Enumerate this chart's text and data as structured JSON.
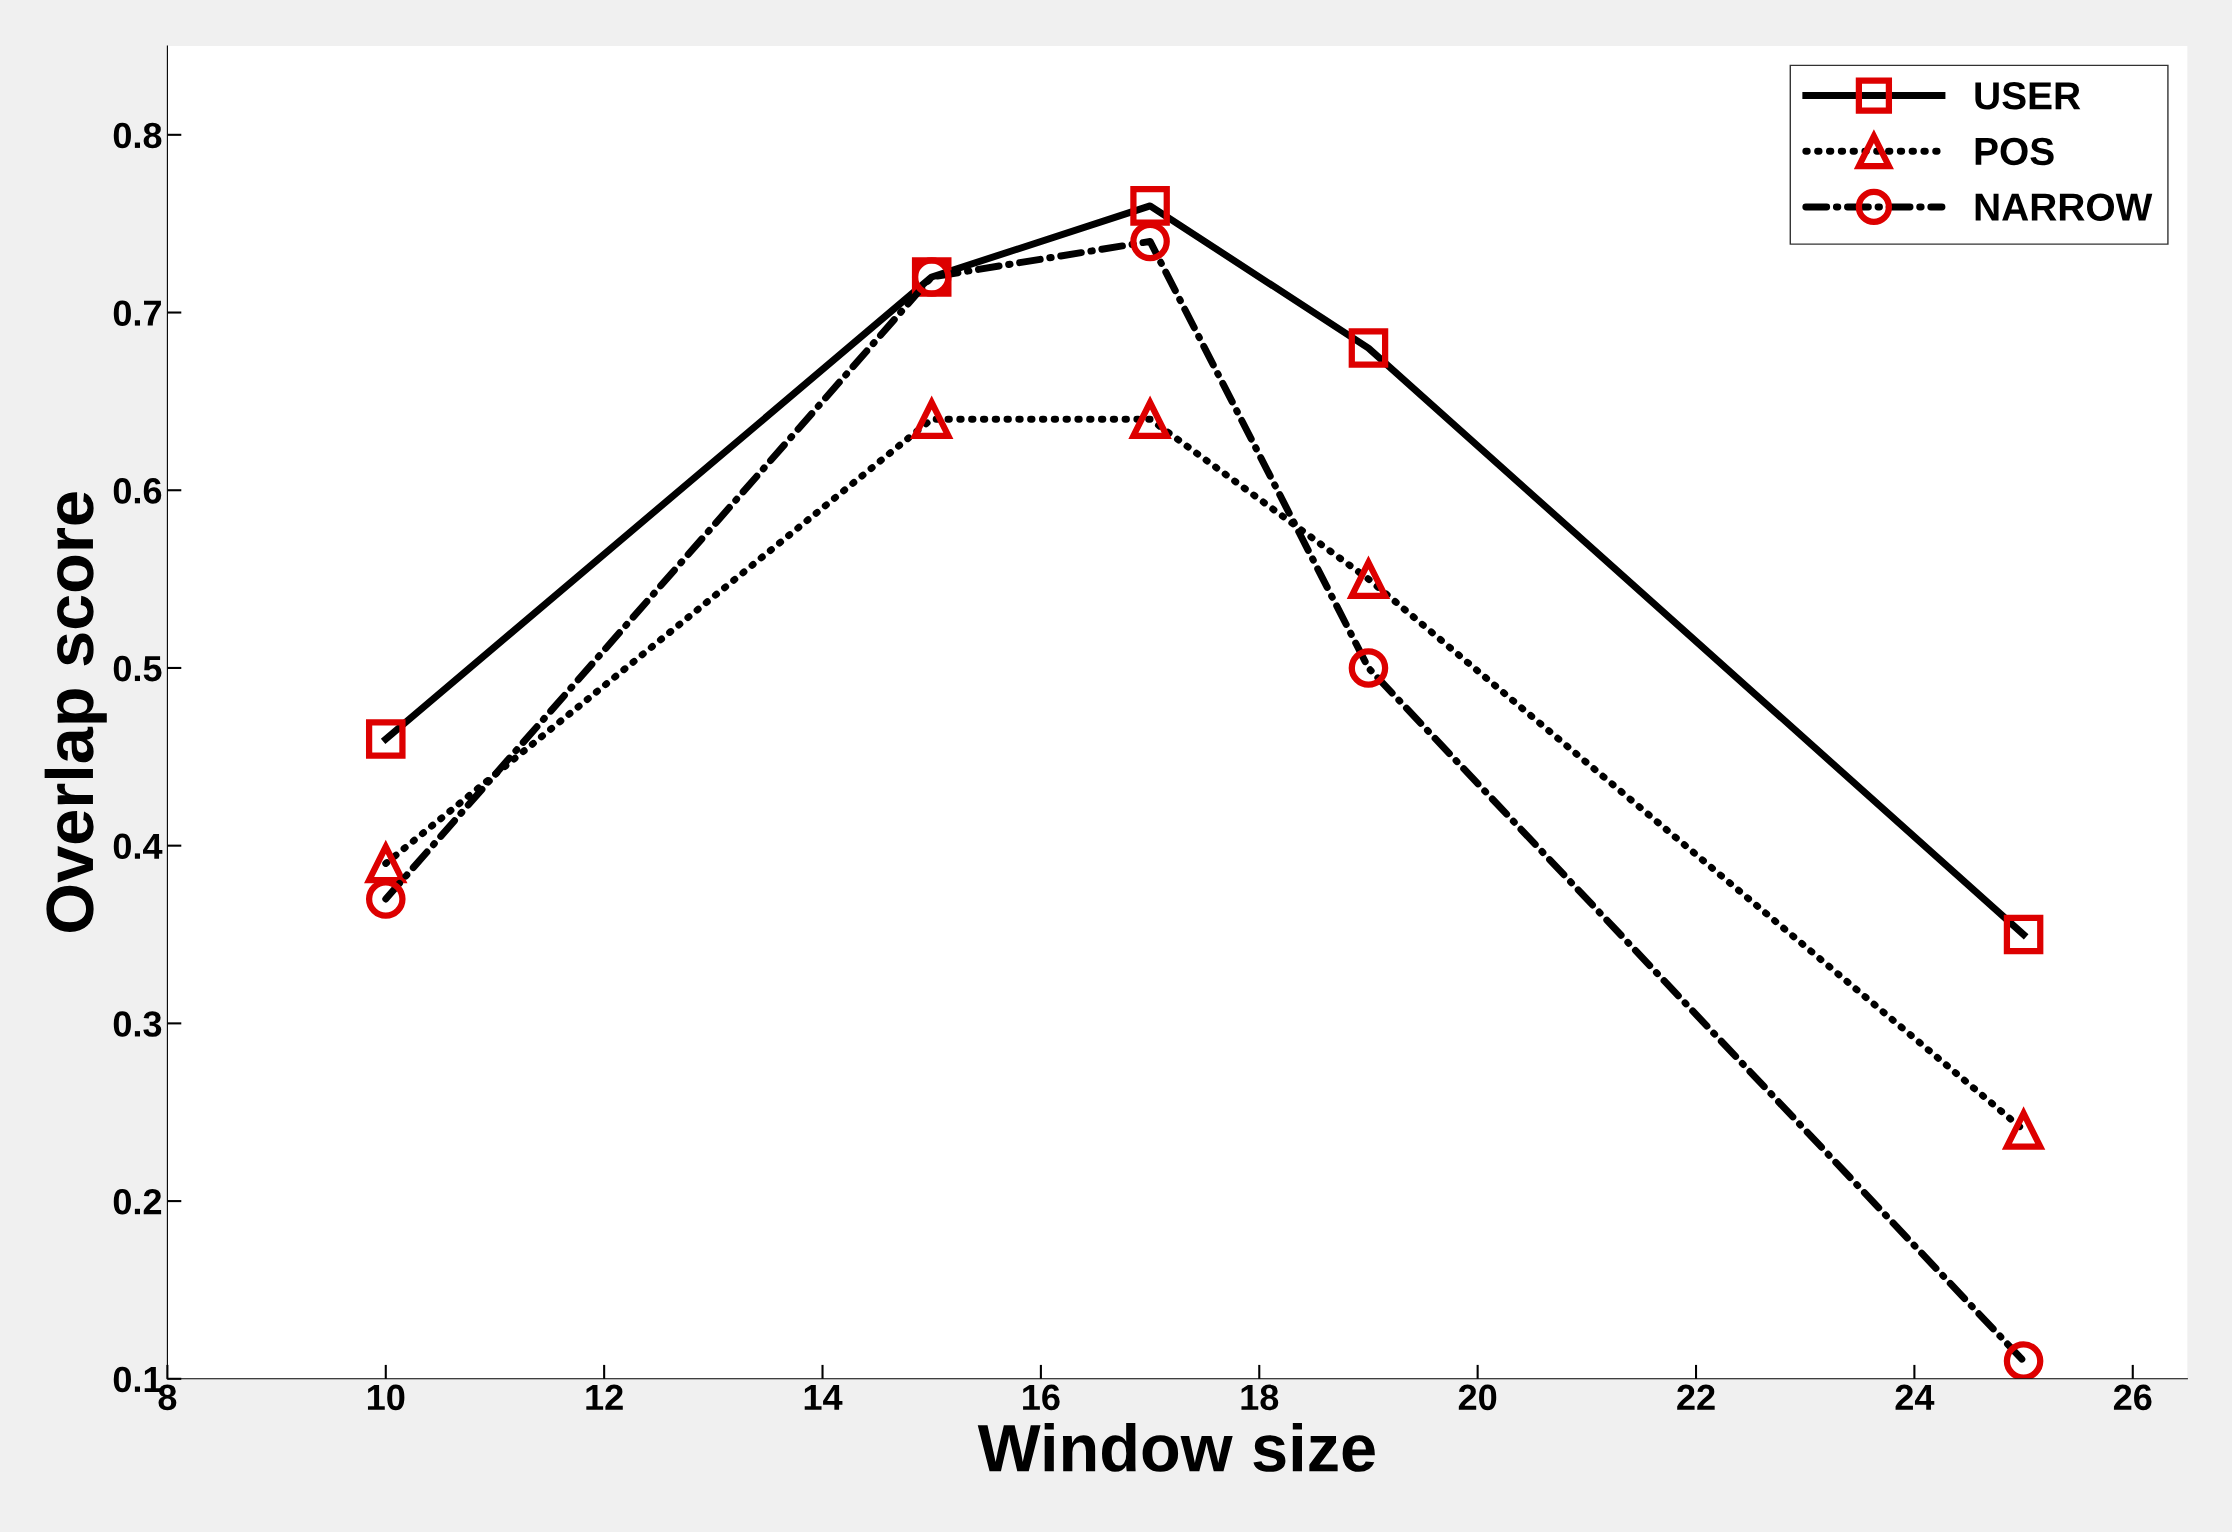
{
  "chart_data": {
    "type": "line",
    "xlabel": "Window size",
    "ylabel": "Overlap score",
    "x": [
      10,
      15,
      17,
      19,
      25
    ],
    "series": [
      {
        "name": "USER",
        "color": "#000000",
        "values": [
          0.46,
          0.72,
          0.76,
          0.68,
          0.35
        ],
        "marker": "square",
        "line_style": "solid"
      },
      {
        "name": "POS",
        "color": "#000000",
        "values": [
          0.39,
          0.64,
          0.64,
          0.55,
          0.24
        ],
        "marker": "triangle",
        "line_style": "dotted"
      },
      {
        "name": "NARROW",
        "color": "#000000",
        "values": [
          0.37,
          0.72,
          0.74,
          0.5,
          0.11
        ],
        "marker": "circle",
        "line_style": "dashdot"
      }
    ],
    "xlim": [
      8,
      26.5
    ],
    "xticks": [
      8,
      10,
      12,
      14,
      16,
      18,
      20,
      22,
      24,
      26
    ],
    "ylim": [
      0.1,
      0.85
    ],
    "yticks": [
      0.1,
      0.2,
      0.3,
      0.4,
      0.5,
      0.6,
      0.7,
      0.8
    ],
    "grid": false,
    "legend": "top right"
  }
}
